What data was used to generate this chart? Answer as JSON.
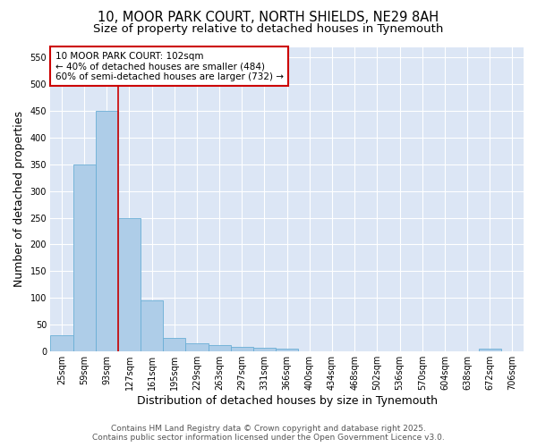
{
  "title_line1": "10, MOOR PARK COURT, NORTH SHIELDS, NE29 8AH",
  "title_line2": "Size of property relative to detached houses in Tynemouth",
  "xlabel": "Distribution of detached houses by size in Tynemouth",
  "ylabel": "Number of detached properties",
  "categories": [
    "25sqm",
    "59sqm",
    "93sqm",
    "127sqm",
    "161sqm",
    "195sqm",
    "229sqm",
    "263sqm",
    "297sqm",
    "331sqm",
    "366sqm",
    "400sqm",
    "434sqm",
    "468sqm",
    "502sqm",
    "536sqm",
    "570sqm",
    "604sqm",
    "638sqm",
    "672sqm",
    "706sqm"
  ],
  "values": [
    30,
    350,
    450,
    250,
    95,
    25,
    15,
    12,
    8,
    6,
    5,
    0,
    0,
    0,
    0,
    0,
    0,
    0,
    0,
    5,
    0
  ],
  "bar_color": "#aecde8",
  "bar_edge_color": "#6aaed6",
  "vline_x": 2.5,
  "vline_color": "#cc0000",
  "annotation_text": "10 MOOR PARK COURT: 102sqm\n← 40% of detached houses are smaller (484)\n60% of semi-detached houses are larger (732) →",
  "annotation_box_color": "#ffffff",
  "annotation_box_edge": "#cc0000",
  "ylim": [
    0,
    570
  ],
  "yticks": [
    0,
    50,
    100,
    150,
    200,
    250,
    300,
    350,
    400,
    450,
    500,
    550
  ],
  "plot_bg_color": "#dce6f5",
  "fig_bg_color": "#ffffff",
  "grid_color": "#ffffff",
  "footer_line1": "Contains HM Land Registry data © Crown copyright and database right 2025.",
  "footer_line2": "Contains public sector information licensed under the Open Government Licence v3.0.",
  "title_fontsize": 10.5,
  "subtitle_fontsize": 9.5,
  "axis_label_fontsize": 9,
  "tick_fontsize": 7,
  "annotation_fontsize": 7.5,
  "footer_fontsize": 6.5
}
